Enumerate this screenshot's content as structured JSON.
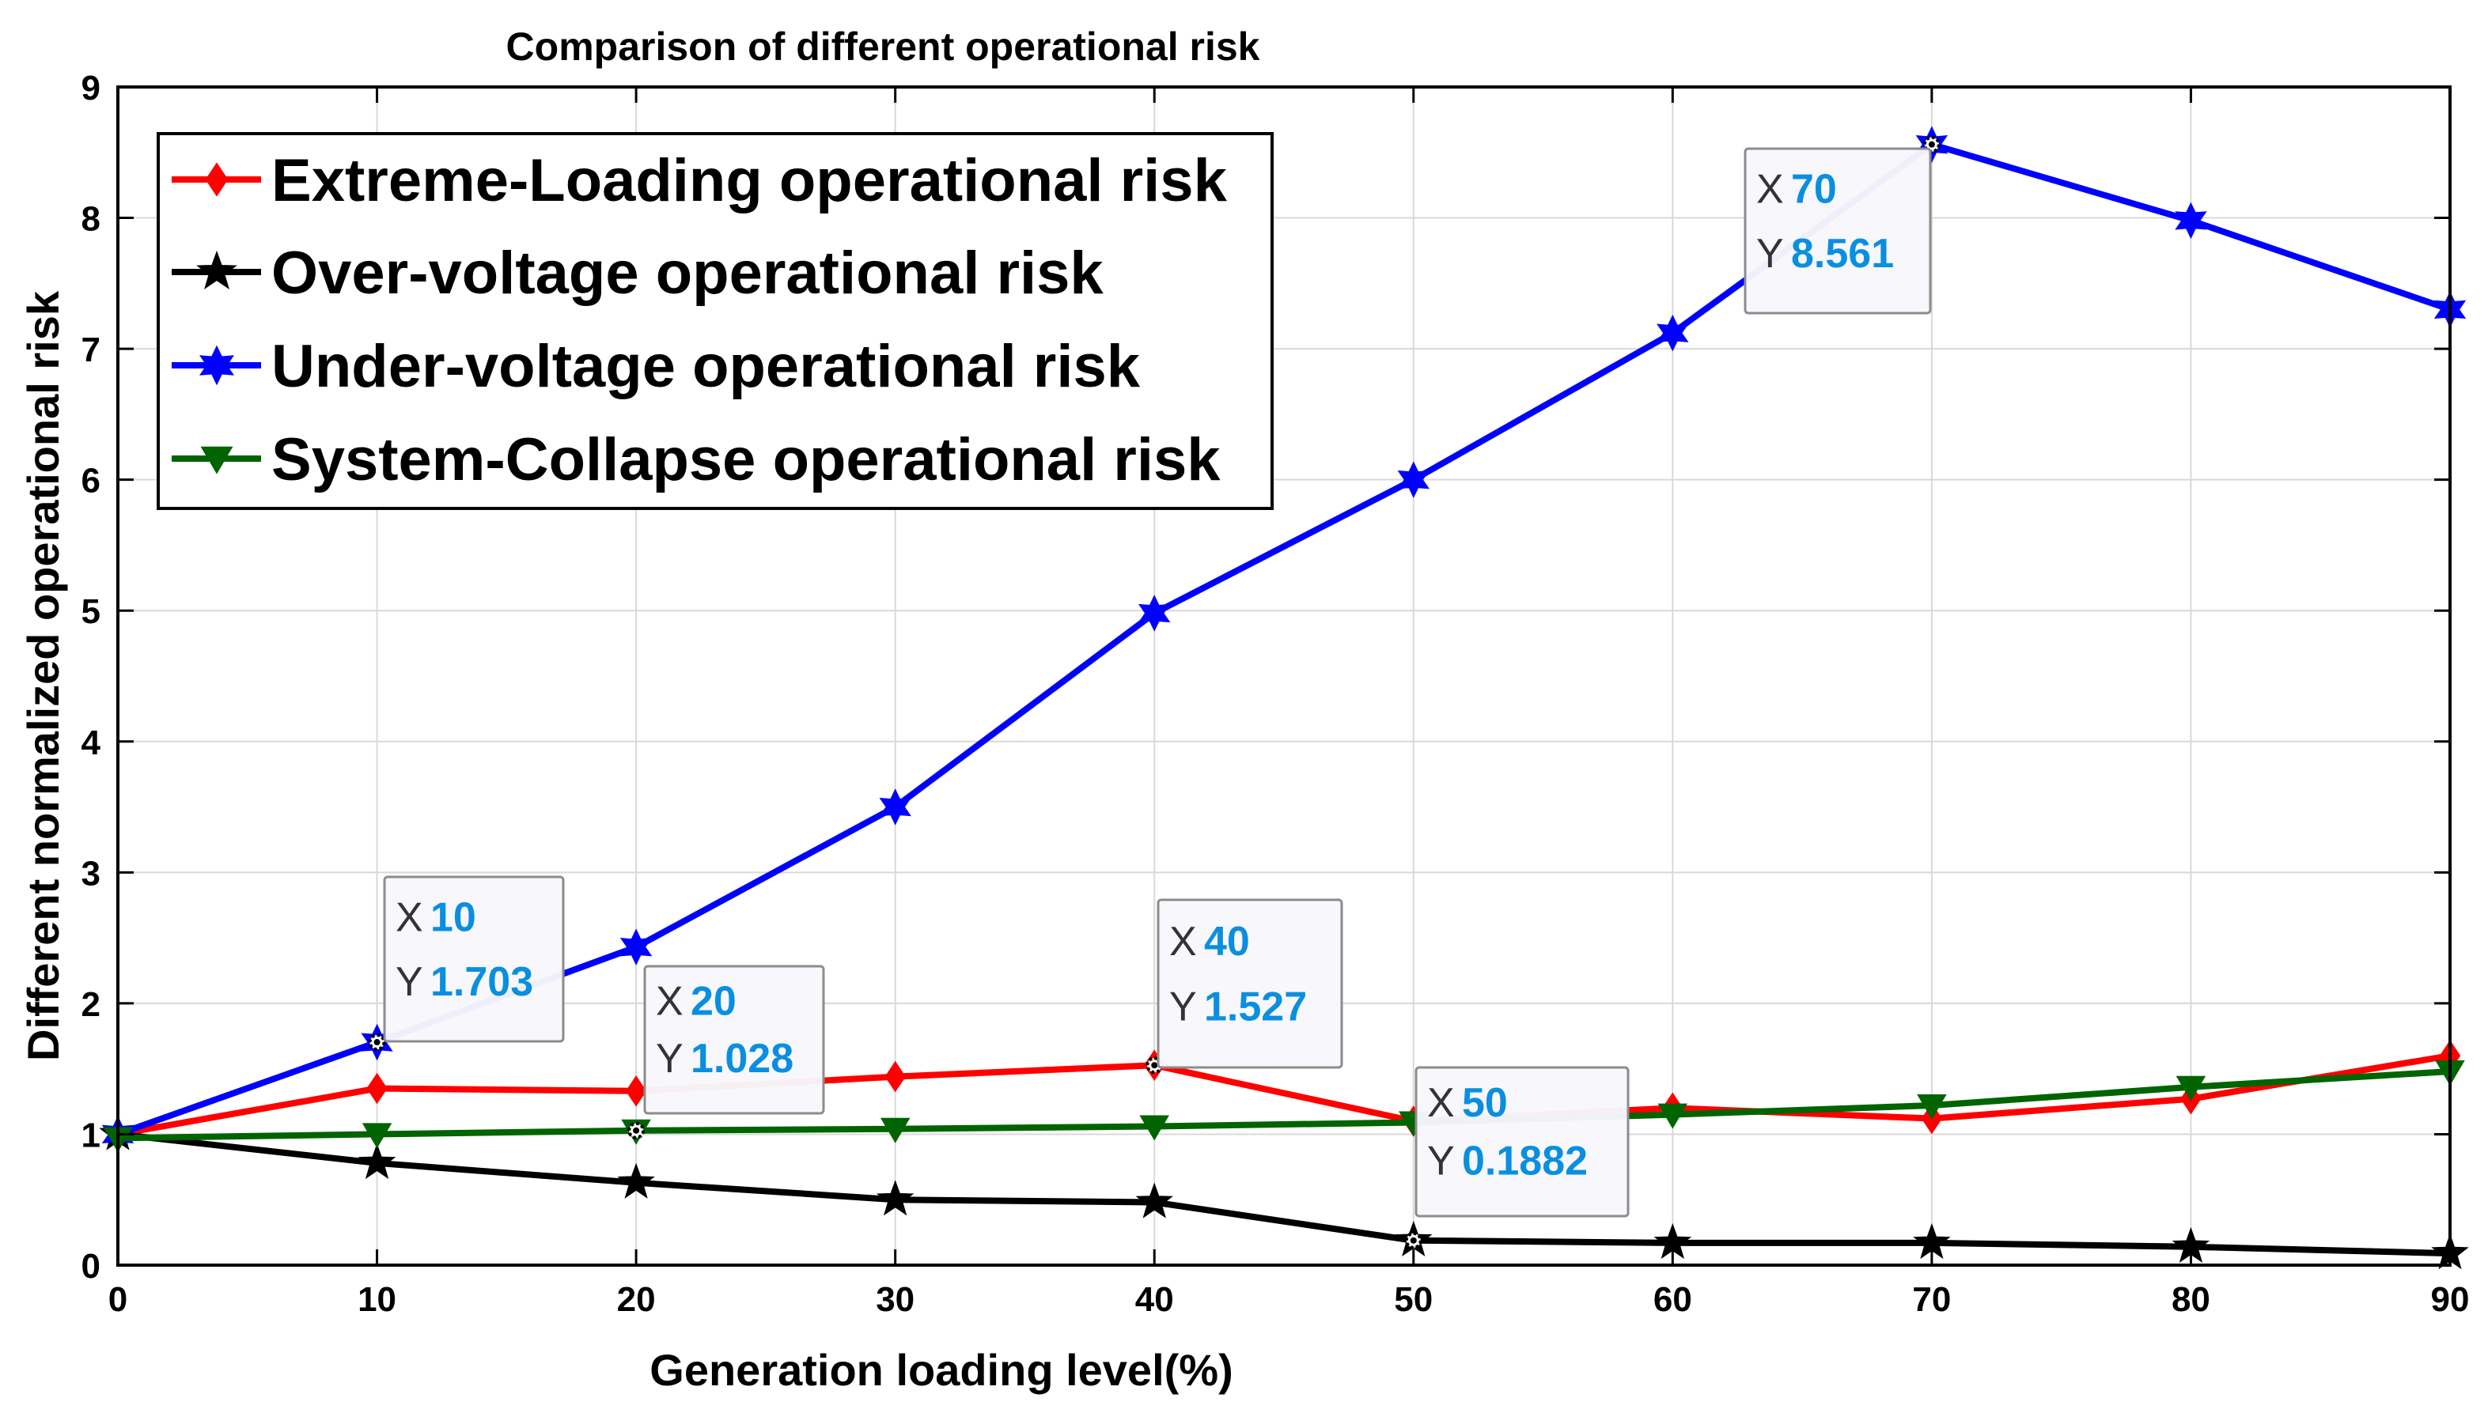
{
  "chart_data": {
    "type": "line",
    "title": "Comparison of different operational risk",
    "xlabel": "Generation loading level(%)",
    "ylabel": "Different normalized operational risk",
    "x": [
      0,
      10,
      20,
      30,
      40,
      50,
      60,
      70,
      80,
      90
    ],
    "xlim": [
      0,
      90
    ],
    "ylim": [
      0,
      9
    ],
    "xticks": [
      0,
      10,
      20,
      30,
      40,
      50,
      60,
      70,
      80,
      90
    ],
    "yticks": [
      0,
      1,
      2,
      3,
      4,
      5,
      6,
      7,
      8,
      9
    ],
    "grid": true,
    "legend_position": "top-left",
    "series": [
      {
        "name": "Extreme-Loading operational risk",
        "color": "#ff0000",
        "marker": "diamond",
        "values": [
          1.0,
          1.35,
          1.33,
          1.44,
          1.527,
          1.1,
          1.2,
          1.12,
          1.27,
          1.6
        ]
      },
      {
        "name": "Over-voltage operational risk",
        "color": "#000000",
        "marker": "star5",
        "values": [
          1.0,
          0.78,
          0.63,
          0.5,
          0.48,
          0.1882,
          0.17,
          0.17,
          0.14,
          0.09
        ]
      },
      {
        "name": "Under-voltage operational risk",
        "color": "#0000ff",
        "marker": "star6",
        "values": [
          1.0,
          1.703,
          2.43,
          3.5,
          4.98,
          6.0,
          7.12,
          8.561,
          7.98,
          7.3
        ]
      },
      {
        "name": "System-Collapse operational risk",
        "color": "#006400",
        "marker": "triangle-down",
        "values": [
          0.97,
          1.0,
          1.028,
          1.04,
          1.06,
          1.09,
          1.15,
          1.22,
          1.36,
          1.48
        ]
      }
    ],
    "datatips": [
      {
        "x_label": "X",
        "x_value": "10",
        "y_label": "Y",
        "y_value": "1.703",
        "series": "Under-voltage operational risk",
        "x": 10,
        "y": 1.703
      },
      {
        "x_label": "X",
        "x_value": "20",
        "y_label": "Y",
        "y_value": "1.028",
        "series": "System-Collapse operational risk",
        "x": 20,
        "y": 1.028
      },
      {
        "x_label": "X",
        "x_value": "40",
        "y_label": "Y",
        "y_value": "1.527",
        "series": "Extreme-Loading operational risk",
        "x": 40,
        "y": 1.527
      },
      {
        "x_label": "X",
        "x_value": "50",
        "y_label": "Y",
        "y_value": "0.1882",
        "series": "Over-voltage operational risk",
        "x": 50,
        "y": 0.1882
      },
      {
        "x_label": "X",
        "x_value": "70",
        "y_label": "Y",
        "y_value": "8.561",
        "series": "Under-voltage operational risk",
        "x": 70,
        "y": 8.561
      }
    ]
  }
}
